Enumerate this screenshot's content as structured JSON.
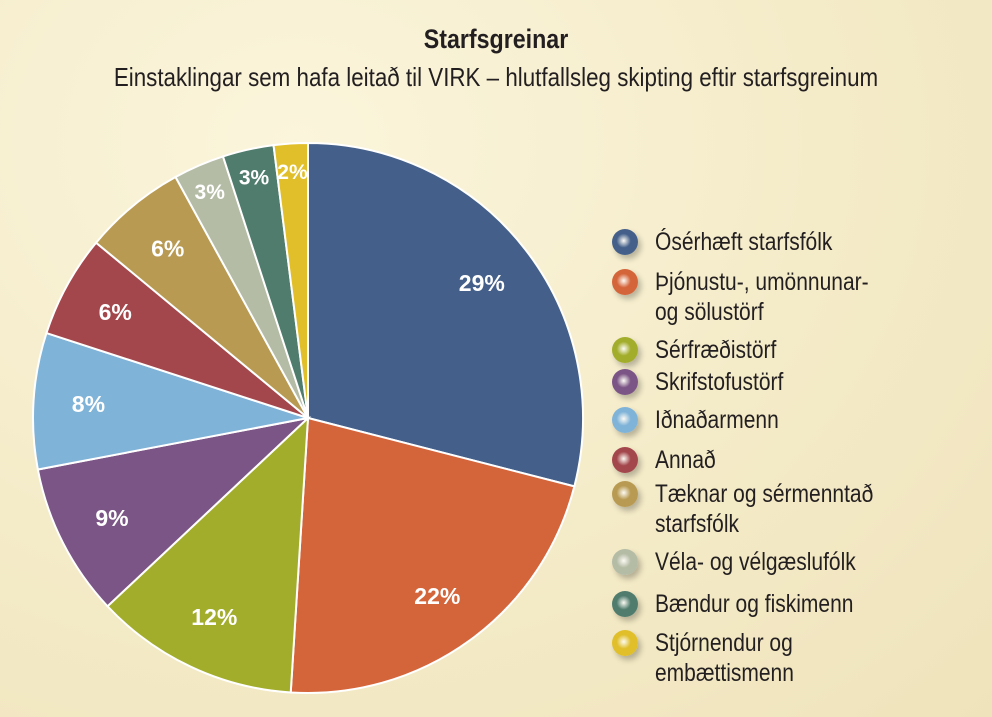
{
  "chart_data": {
    "type": "pie",
    "title": "Starfsgreinar",
    "subtitle": "Einstaklingar sem hafa leitað til VIRK – hlutfallsleg skipting eftir starfsgreinum",
    "legend_position": "right",
    "series": [
      {
        "name": "Ósérhæft starfsfólk",
        "value": 29,
        "label": "29%",
        "color": "#44608a"
      },
      {
        "name": "Þjónustu-, umönnunar-\nog sölustörf",
        "value": 22,
        "label": "22%",
        "color": "#d4643a"
      },
      {
        "name": "Sérfræðistörf",
        "value": 12,
        "label": "12%",
        "color": "#a2ad2c"
      },
      {
        "name": "Skrifstofustörf",
        "value": 9,
        "label": "9%",
        "color": "#7b5585"
      },
      {
        "name": "Iðnaðarmenn",
        "value": 8,
        "label": "8%",
        "color": "#80b3d8"
      },
      {
        "name": "Annað",
        "value": 6,
        "label": "6%",
        "color": "#a3474c"
      },
      {
        "name": "Tæknar og sérmenntað\nstarfsfólk",
        "value": 6,
        "label": "6%",
        "color": "#b89a52"
      },
      {
        "name": "Véla- og vélgæslufólk",
        "value": 3,
        "label": "3%",
        "color": "#b5bca6"
      },
      {
        "name": "Bændur og fiskimenn",
        "value": 3,
        "label": "3%",
        "color": "#4f7c6d"
      },
      {
        "name": "Stjórnendur og\nembættismenn",
        "value": 2,
        "label": "2%",
        "color": "#e0bf2b"
      }
    ]
  }
}
